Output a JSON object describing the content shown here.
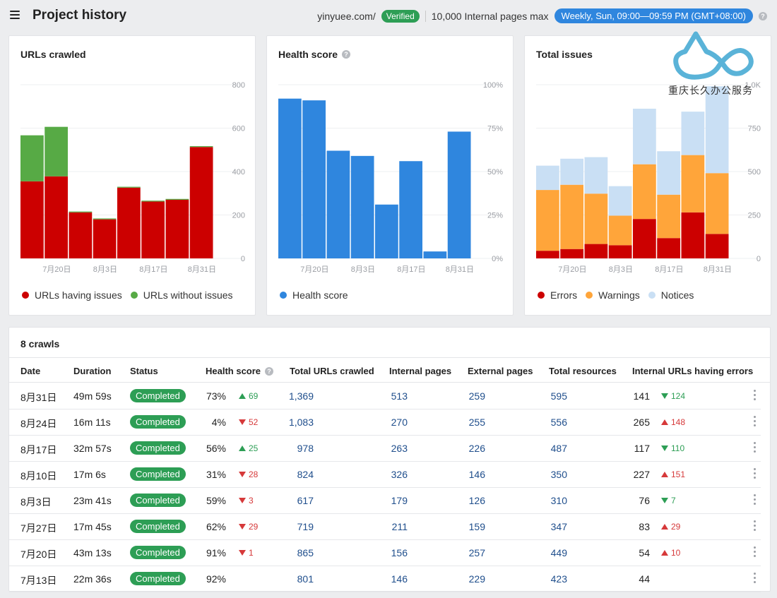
{
  "header": {
    "title": "Project history",
    "domain": "yinyuee.com/",
    "verified": "Verified",
    "pages_max": "10,000 Internal pages max",
    "schedule": "Weekly, Sun, 09:00—09:59 PM (GMT+08:00)"
  },
  "watermark": {
    "text": "重庆长久办公服务"
  },
  "colors": {
    "issues": "#cc0000",
    "no_issues": "#57aa45",
    "health": "#2f86de",
    "errors": "#cc0000",
    "warnings": "#ffa53a",
    "notices": "#c9dff4",
    "green": "#2d9e55",
    "red": "#d6393a"
  },
  "charts": {
    "urls": {
      "title": "URLs crawled",
      "legend": [
        "URLs having issues",
        "URLs without issues"
      ]
    },
    "health": {
      "title": "Health score",
      "legend": [
        "Health score"
      ]
    },
    "issues": {
      "title": "Total issues",
      "legend": [
        "Errors",
        "Warnings",
        "Notices"
      ]
    }
  },
  "chart_data": [
    {
      "type": "bar",
      "title": "URLs crawled",
      "stacked": true,
      "categories": [
        "7月13日",
        "7月20日",
        "7月27日",
        "8月3日",
        "8月10日",
        "8月17日",
        "8月24日",
        "8月31日"
      ],
      "tick_labels": [
        "7月20日",
        "8月3日",
        "8月17日",
        "8月31日"
      ],
      "ylim": [
        0,
        800
      ],
      "yticks": [
        "0",
        "200",
        "400",
        "600",
        "800"
      ],
      "series": [
        {
          "name": "URLs having issues",
          "values": [
            355,
            378,
            212,
            180,
            326,
            262,
            270,
            513
          ]
        },
        {
          "name": "URLs without issues",
          "values": [
            212,
            228,
            4,
            4,
            4,
            4,
            4,
            4
          ]
        }
      ]
    },
    {
      "type": "bar",
      "title": "Health score",
      "categories": [
        "7月13日",
        "7月20日",
        "7月27日",
        "8月3日",
        "8月10日",
        "8月17日",
        "8月24日",
        "8月31日"
      ],
      "tick_labels": [
        "7月20日",
        "8月3日",
        "8月17日",
        "8月31日"
      ],
      "ylim": [
        0,
        100
      ],
      "yticks": [
        "0%",
        "25%",
        "50%",
        "75%",
        "100%"
      ],
      "series": [
        {
          "name": "Health score",
          "values": [
            92,
            91,
            62,
            59,
            31,
            56,
            4,
            73
          ]
        }
      ]
    },
    {
      "type": "bar",
      "title": "Total issues",
      "stacked": true,
      "categories": [
        "7月13日",
        "7月20日",
        "7月27日",
        "8月3日",
        "8月10日",
        "8月17日",
        "8月24日",
        "8月31日"
      ],
      "tick_labels": [
        "7月20日",
        "8月3日",
        "8月17日",
        "8月31日"
      ],
      "ylim": [
        0,
        1000
      ],
      "yticks": [
        "0",
        "250",
        "500",
        "750",
        "1.0K"
      ],
      "series": [
        {
          "name": "Errors",
          "values": [
            44,
            54,
            83,
            76,
            227,
            117,
            265,
            141
          ]
        },
        {
          "name": "Warnings",
          "values": [
            350,
            370,
            290,
            170,
            315,
            250,
            330,
            350
          ]
        },
        {
          "name": "Notices",
          "values": [
            140,
            150,
            210,
            170,
            320,
            250,
            250,
            500
          ]
        }
      ]
    }
  ],
  "table": {
    "heading": "8 crawls",
    "columns": [
      "Date",
      "Duration",
      "Status",
      "Health score",
      "Total URLs crawled",
      "Internal pages",
      "External pages",
      "Total resources",
      "Internal URLs having errors"
    ],
    "rows": [
      {
        "date": "8月31日",
        "duration": "49m 59s",
        "status": "Completed",
        "health": "73%",
        "hdelta": "69",
        "hdir": "up",
        "urls": "1,369",
        "internal": "513",
        "external": "259",
        "resources": "595",
        "errors": "141",
        "edelta": "124",
        "edir": "down-good"
      },
      {
        "date": "8月24日",
        "duration": "16m 11s",
        "status": "Completed",
        "health": "4%",
        "hdelta": "52",
        "hdir": "down",
        "urls": "1,083",
        "internal": "270",
        "external": "255",
        "resources": "556",
        "errors": "265",
        "edelta": "148",
        "edir": "up-bad"
      },
      {
        "date": "8月17日",
        "duration": "32m 57s",
        "status": "Completed",
        "health": "56%",
        "hdelta": "25",
        "hdir": "up",
        "urls": "978",
        "internal": "263",
        "external": "226",
        "resources": "487",
        "errors": "117",
        "edelta": "110",
        "edir": "down-good"
      },
      {
        "date": "8月10日",
        "duration": "17m 6s",
        "status": "Completed",
        "health": "31%",
        "hdelta": "28",
        "hdir": "down",
        "urls": "824",
        "internal": "326",
        "external": "146",
        "resources": "350",
        "errors": "227",
        "edelta": "151",
        "edir": "up-bad"
      },
      {
        "date": "8月3日",
        "duration": "23m 41s",
        "status": "Completed",
        "health": "59%",
        "hdelta": "3",
        "hdir": "down",
        "urls": "617",
        "internal": "179",
        "external": "126",
        "resources": "310",
        "errors": "76",
        "edelta": "7",
        "edir": "down-good"
      },
      {
        "date": "7月27日",
        "duration": "17m 45s",
        "status": "Completed",
        "health": "62%",
        "hdelta": "29",
        "hdir": "down",
        "urls": "719",
        "internal": "211",
        "external": "159",
        "resources": "347",
        "errors": "83",
        "edelta": "29",
        "edir": "up-bad"
      },
      {
        "date": "7月20日",
        "duration": "43m 13s",
        "status": "Completed",
        "health": "91%",
        "hdelta": "1",
        "hdir": "down",
        "urls": "865",
        "internal": "156",
        "external": "257",
        "resources": "449",
        "errors": "54",
        "edelta": "10",
        "edir": "up-bad"
      },
      {
        "date": "7月13日",
        "duration": "22m 36s",
        "status": "Completed",
        "health": "92%",
        "hdelta": "",
        "hdir": "",
        "urls": "801",
        "internal": "146",
        "external": "229",
        "resources": "423",
        "errors": "44",
        "edelta": "",
        "edir": ""
      }
    ]
  }
}
